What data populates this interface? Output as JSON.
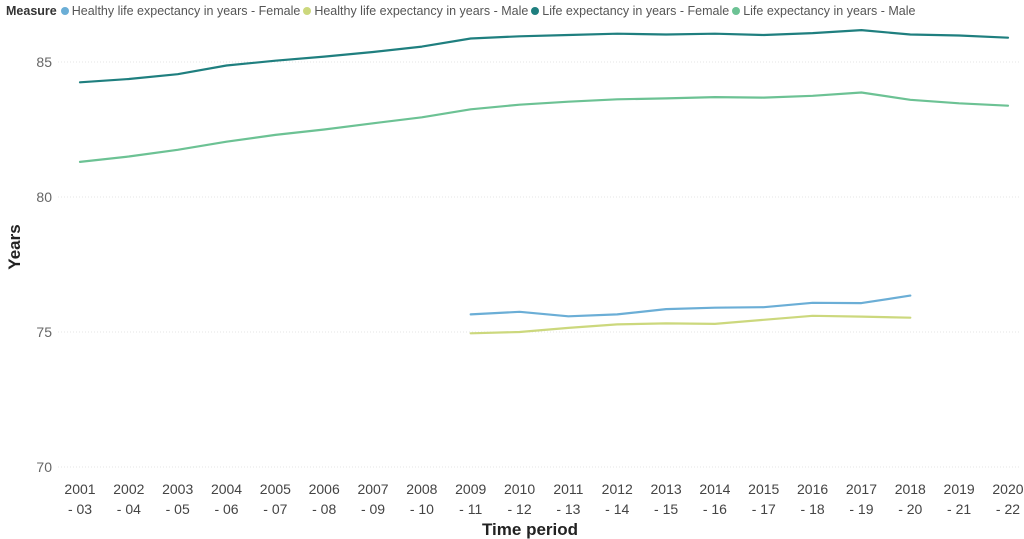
{
  "chart_data": {
    "type": "line",
    "legend_title": "Measure",
    "legend_position": "top-left",
    "xlabel": "Time period",
    "ylabel": "Years",
    "ylim": [
      70,
      86.5
    ],
    "yticks": [
      70,
      75,
      80,
      85
    ],
    "grid": true,
    "categories": [
      [
        "2001",
        "- 03"
      ],
      [
        "2002",
        "- 04"
      ],
      [
        "2003",
        "- 05"
      ],
      [
        "2004",
        "- 06"
      ],
      [
        "2005",
        "- 07"
      ],
      [
        "2006",
        "- 08"
      ],
      [
        "2007",
        "- 09"
      ],
      [
        "2008",
        "- 10"
      ],
      [
        "2009",
        "- 11"
      ],
      [
        "2010",
        "- 12"
      ],
      [
        "2011",
        "- 13"
      ],
      [
        "2012",
        "- 14"
      ],
      [
        "2013",
        "- 15"
      ],
      [
        "2014",
        "- 16"
      ],
      [
        "2015",
        "- 17"
      ],
      [
        "2016",
        "- 18"
      ],
      [
        "2017",
        "- 19"
      ],
      [
        "2018",
        "- 20"
      ],
      [
        "2019",
        "- 21"
      ],
      [
        "2020",
        "- 22"
      ]
    ],
    "series": [
      {
        "name": "Healthy life expectancy in years - Female",
        "color": "#6baed6",
        "values": [
          null,
          null,
          null,
          null,
          null,
          null,
          null,
          null,
          75.65,
          75.75,
          75.58,
          75.65,
          75.85,
          75.9,
          75.92,
          76.08,
          76.07,
          76.35,
          null,
          null
        ]
      },
      {
        "name": "Healthy life expectancy in years - Male",
        "color": "#ccd87d",
        "values": [
          null,
          null,
          null,
          null,
          null,
          null,
          null,
          null,
          74.95,
          75.0,
          75.15,
          75.28,
          75.32,
          75.3,
          75.45,
          75.6,
          75.57,
          75.53,
          null,
          null
        ]
      },
      {
        "name": "Life expectancy in years - Female",
        "color": "#1f7f7f",
        "values": [
          84.25,
          84.37,
          84.55,
          84.87,
          85.05,
          85.2,
          85.37,
          85.57,
          85.87,
          85.95,
          86.0,
          86.05,
          86.02,
          86.05,
          86.0,
          86.07,
          86.18,
          86.02,
          85.98,
          85.9
        ]
      },
      {
        "name": "Life expectancy in years - Male",
        "color": "#6cc294",
        "values": [
          81.3,
          81.5,
          81.75,
          82.05,
          82.3,
          82.5,
          82.73,
          82.95,
          83.25,
          83.42,
          83.53,
          83.62,
          83.65,
          83.7,
          83.68,
          83.75,
          83.87,
          83.6,
          83.47,
          83.38
        ]
      }
    ]
  }
}
